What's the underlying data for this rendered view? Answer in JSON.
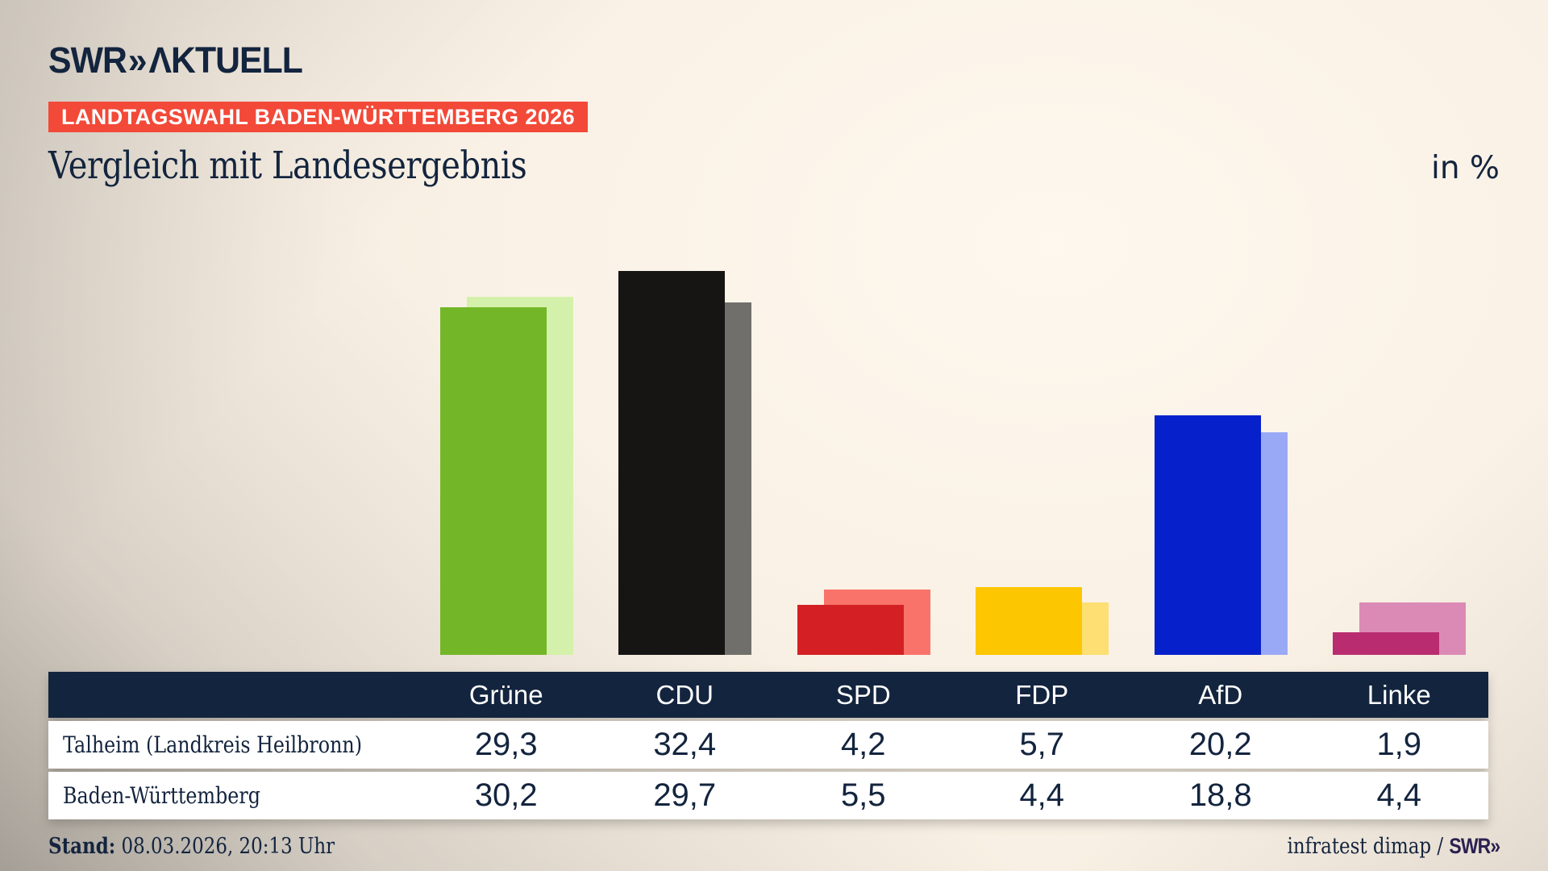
{
  "brand": {
    "logo_text": "SWR",
    "logo_chevron": "»",
    "logo_suffix": "ΛKTUELL"
  },
  "badge": {
    "label": "LANDTAGSWAHL BADEN-WÜRTTEMBERG 2026"
  },
  "title": "Vergleich mit Landesergebnis",
  "unit_label": "in %",
  "chart_data": {
    "type": "bar",
    "categories": [
      "Grüne",
      "CDU",
      "SPD",
      "FDP",
      "AfD",
      "Linke"
    ],
    "series": [
      {
        "name": "Talheim (Landkreis Heilbronn)",
        "role": "municipality-front-bar",
        "values": [
          29.3,
          32.4,
          4.2,
          5.7,
          20.2,
          1.9
        ],
        "colors": [
          "#73b728",
          "#171514",
          "#d42024",
          "#fcc600",
          "#0621cb",
          "#b92d70"
        ]
      },
      {
        "name": "Baden-Württemberg",
        "role": "state-back-bar",
        "values": [
          30.2,
          29.7,
          5.5,
          4.4,
          18.8,
          4.4
        ],
        "colors": [
          "#d4f1ab",
          "#716f6c",
          "#f9736a",
          "#fddf73",
          "#9aa9f6",
          "#db8ab5"
        ]
      }
    ],
    "title": "Vergleich mit Landesergebnis",
    "ylabel": "in %",
    "ylim": [
      0,
      37.5
    ],
    "grid": false,
    "legend": false,
    "bar_style": "front bar = municipality result, lighter offset bar behind = state result"
  },
  "table": {
    "party_headers": [
      "Grüne",
      "CDU",
      "SPD",
      "FDP",
      "AfD",
      "Linke"
    ],
    "rows": [
      {
        "label": "Talheim (Landkreis Heilbronn)",
        "values": [
          "29,3",
          "32,4",
          "4,2",
          "5,7",
          "20,2",
          "1,9"
        ]
      },
      {
        "label": "Baden-Württemberg",
        "values": [
          "30,2",
          "29,7",
          "5,5",
          "4,4",
          "18,8",
          "4,4"
        ]
      }
    ]
  },
  "footer": {
    "stand_label": "Stand:",
    "stand_value": " 08.03.2026, 20:13 Uhr",
    "source_text": "infratest dimap / ",
    "source_brand": "SWR»"
  },
  "colors": {
    "navy": "#13243e",
    "background": "#f8efe3",
    "accent_red": "#f34938",
    "white": "#ffffff"
  }
}
